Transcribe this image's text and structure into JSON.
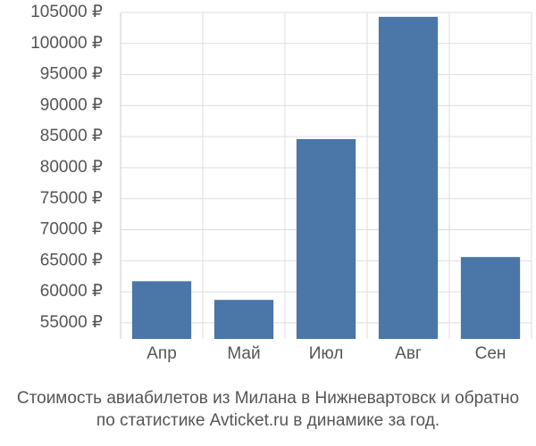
{
  "chart_data": {
    "type": "bar",
    "title": [
      "Стоимость авиабилетов из Милана в Нижневартовск и обратно",
      "по статистике Avticket.ru в динамике за год."
    ],
    "categories": [
      "Апр",
      "Май",
      "Июл",
      "Авг",
      "Сен"
    ],
    "values": [
      61700,
      58700,
      84600,
      104300,
      65600
    ],
    "color": "#4a76a8",
    "ylim": [
      52400,
      105000
    ],
    "yticks": [
      {
        "value": 55000,
        "label": "55000 ₽"
      },
      {
        "value": 60000,
        "label": "60000 ₽"
      },
      {
        "value": 65000,
        "label": "65000 ₽"
      },
      {
        "value": 70000,
        "label": "70000 ₽"
      },
      {
        "value": 75000,
        "label": "75000 ₽"
      },
      {
        "value": 80000,
        "label": "80000 ₽"
      },
      {
        "value": 85000,
        "label": "85000 ₽"
      },
      {
        "value": 90000,
        "label": "90000 ₽"
      },
      {
        "value": 95000,
        "label": "95000 ₽"
      },
      {
        "value": 100000,
        "label": "100000 ₽"
      },
      {
        "value": 105000,
        "label": "105000 ₽"
      }
    ],
    "grid": true
  }
}
